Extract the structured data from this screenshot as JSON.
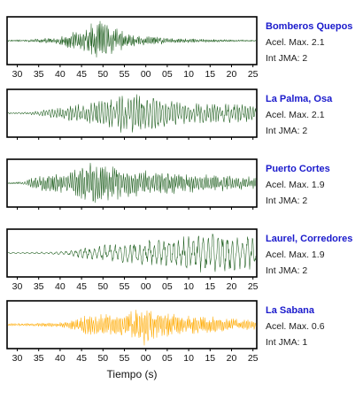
{
  "chart_data": {
    "type": "line",
    "x_tick_labels": [
      "30",
      "35",
      "40",
      "45",
      "50",
      "55",
      "00",
      "05",
      "10",
      "15",
      "20",
      "25"
    ],
    "xlabel": "Tiempo (s)",
    "colors": {
      "station_name": "#1a1acc",
      "default_trace": "#1f5f1f",
      "highlight_trace": "#ffaa00"
    },
    "panels": [
      {
        "station": "Bomberos Quepos",
        "accel_label": "Acel. Max. 2.1",
        "int_label": "Int JMA: 2",
        "accel_max": 2.1,
        "int_jma": 2,
        "color": "#1f5f1f",
        "envelope": [
          [
            0,
            0.04
          ],
          [
            10,
            0.05
          ],
          [
            25,
            0.18
          ],
          [
            35,
            0.45
          ],
          [
            42,
            0.8
          ],
          [
            48,
            1.0
          ],
          [
            55,
            0.7
          ],
          [
            62,
            0.4
          ],
          [
            72,
            0.22
          ],
          [
            85,
            0.12
          ],
          [
            100,
            0.08
          ],
          [
            115,
            0.05
          ],
          [
            128,
            0.04
          ]
        ],
        "period": 0.55,
        "show_ticks": true
      },
      {
        "station": "La Palma, Osa",
        "accel_label": "Acel. Max. 2.1",
        "int_label": "Int JMA: 2",
        "accel_max": 2.1,
        "int_jma": 2,
        "color": "#1f5f1f",
        "envelope": [
          [
            0,
            0.03
          ],
          [
            10,
            0.06
          ],
          [
            25,
            0.25
          ],
          [
            40,
            0.5
          ],
          [
            55,
            0.85
          ],
          [
            65,
            1.0
          ],
          [
            75,
            0.85
          ],
          [
            85,
            0.6
          ],
          [
            100,
            0.5
          ],
          [
            115,
            0.45
          ],
          [
            128,
            0.4
          ]
        ],
        "period": 1.0,
        "show_ticks": false
      },
      {
        "station": "Puerto Cortes",
        "accel_label": "Acel. Max. 1.9",
        "int_label": "Int JMA: 2",
        "accel_max": 1.9,
        "int_jma": 2,
        "color": "#1f5f1f",
        "envelope": [
          [
            0,
            0.03
          ],
          [
            8,
            0.08
          ],
          [
            15,
            0.35
          ],
          [
            22,
            0.4
          ],
          [
            30,
            0.5
          ],
          [
            40,
            0.9
          ],
          [
            45,
            1.0
          ],
          [
            55,
            0.8
          ],
          [
            65,
            0.65
          ],
          [
            80,
            0.55
          ],
          [
            95,
            0.45
          ],
          [
            110,
            0.4
          ],
          [
            128,
            0.3
          ]
        ],
        "period": 0.7,
        "show_ticks": false
      },
      {
        "station": "Laurel, Corredores",
        "accel_label": "Acel. Max. 1.9",
        "int_label": "Int JMA: 2",
        "accel_max": 1.9,
        "int_jma": 2,
        "color": "#1f5f1f",
        "envelope": [
          [
            0,
            0.03
          ],
          [
            20,
            0.05
          ],
          [
            30,
            0.1
          ],
          [
            40,
            0.3
          ],
          [
            55,
            0.45
          ],
          [
            70,
            0.6
          ],
          [
            85,
            0.75
          ],
          [
            95,
            0.9
          ],
          [
            105,
            1.0
          ],
          [
            115,
            0.95
          ],
          [
            128,
            0.8
          ]
        ],
        "period": 1.8,
        "show_ticks": true
      },
      {
        "station": "La Sabana",
        "accel_label": "Acel. Max. 0.6",
        "int_label": "Int JMA: 1",
        "accel_max": 0.6,
        "int_jma": 1,
        "color": "#ffaa00",
        "envelope": [
          [
            0,
            0.06
          ],
          [
            15,
            0.08
          ],
          [
            28,
            0.12
          ],
          [
            40,
            0.45
          ],
          [
            55,
            0.55
          ],
          [
            65,
            0.7
          ],
          [
            70,
            1.0
          ],
          [
            78,
            0.65
          ],
          [
            90,
            0.5
          ],
          [
            105,
            0.4
          ],
          [
            118,
            0.3
          ],
          [
            128,
            0.25
          ]
        ],
        "period": 0.6,
        "show_ticks": true
      }
    ]
  }
}
